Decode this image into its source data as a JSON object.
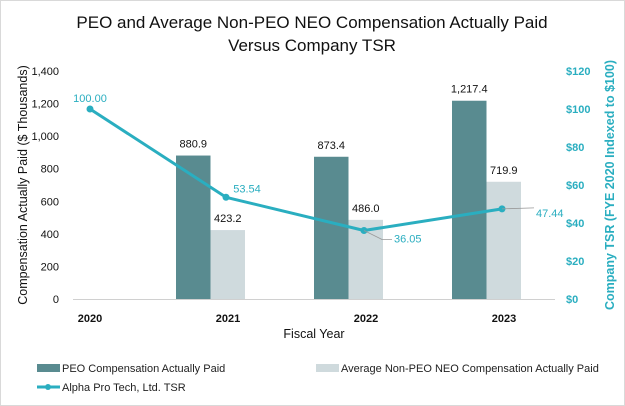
{
  "chart_data": {
    "type": "bar+line",
    "title_lines": [
      "PEO and Average Non-PEO NEO Compensation Actually Paid",
      "Versus Company TSR"
    ],
    "xlabel": "Fiscal Year",
    "ylabel": "Compensation Actually Paid ($ Thousands)",
    "y2label": "Company TSR (FYE 2020 Indexed to $100)",
    "categories": [
      "2020",
      "2021",
      "2022",
      "2023"
    ],
    "ylim": [
      0,
      1400
    ],
    "yticks": [
      "0",
      "200",
      "400",
      "600",
      "800",
      "1,000",
      "1,200",
      "1,400"
    ],
    "y2lim": [
      0,
      120
    ],
    "y2ticks": [
      "$0",
      "$20",
      "$40",
      "$60",
      "$80",
      "$100",
      "$120"
    ],
    "grid": false,
    "legend_position": "bottom",
    "series": [
      {
        "name": "PEO Compensation Actually Paid",
        "type": "bar",
        "axis": "left",
        "color": "#598b90",
        "values": [
          null,
          880.9,
          873.4,
          1217.4
        ],
        "labels": [
          "",
          "880.9",
          "873.4",
          "1,217.4"
        ]
      },
      {
        "name": "Average Non-PEO NEO Compensation Actually Paid",
        "type": "bar",
        "axis": "left",
        "color": "#cfdadd",
        "values": [
          null,
          423.2,
          486.0,
          719.9
        ],
        "labels": [
          "",
          "423.2",
          "486.0",
          "719.9"
        ]
      },
      {
        "name": "Alpha Pro Tech, Ltd. TSR",
        "type": "line",
        "axis": "right",
        "color": "#2aaec0",
        "values": [
          100.0,
          53.54,
          36.05,
          47.44
        ],
        "labels": [
          "100.00",
          "53.54",
          "36.05",
          "47.44"
        ]
      }
    ]
  }
}
